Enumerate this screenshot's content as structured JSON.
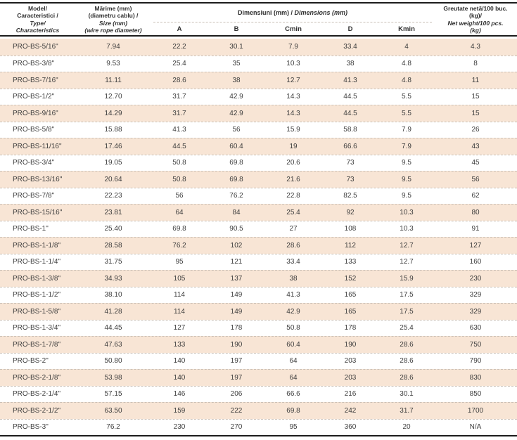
{
  "table": {
    "header": {
      "model": {
        "line1": "Model/",
        "line2": "Caracteristici /",
        "line3": "Type/",
        "line4": "Characteristics"
      },
      "size": {
        "line1": "Mărime (mm)",
        "line2": "(diametru cablu) /",
        "line3": "Size (mm)",
        "line4": "(wire rope diameter)"
      },
      "dimensions_group": {
        "ro": "Dimensiuni (mm)",
        "separator": " / ",
        "en": "Dimensions (mm)"
      },
      "dimension_columns": {
        "a": "A",
        "b": "B",
        "cmin": "Cmin",
        "d": "D",
        "kmin": "Kmin"
      },
      "weight": {
        "line1": "Greutate netă/100 buc.",
        "line2": "(kg)/",
        "line3": "Net weight/100 pcs.",
        "line4": "(kg)"
      }
    },
    "columns_order": [
      "model",
      "size",
      "a",
      "b",
      "cmin",
      "d",
      "kmin",
      "weight"
    ],
    "rows": [
      [
        "PRO-BS-5/16\"",
        "7.94",
        "22.2",
        "30.1",
        "7.9",
        "33.4",
        "4",
        "4.3"
      ],
      [
        "PRO-BS-3/8\"",
        "9.53",
        "25.4",
        "35",
        "10.3",
        "38",
        "4.8",
        "8"
      ],
      [
        "PRO-BS-7/16\"",
        "11.11",
        "28.6",
        "38",
        "12.7",
        "41.3",
        "4.8",
        "11"
      ],
      [
        "PRO-BS-1/2\"",
        "12.70",
        "31.7",
        "42.9",
        "14.3",
        "44.5",
        "5.5",
        "15"
      ],
      [
        "PRO-BS-9/16\"",
        "14.29",
        "31.7",
        "42.9",
        "14.3",
        "44.5",
        "5.5",
        "15"
      ],
      [
        "PRO-BS-5/8\"",
        "15.88",
        "41.3",
        "56",
        "15.9",
        "58.8",
        "7.9",
        "26"
      ],
      [
        "PRO-BS-11/16\"",
        "17.46",
        "44.5",
        "60.4",
        "19",
        "66.6",
        "7.9",
        "43"
      ],
      [
        "PRO-BS-3/4\"",
        "19.05",
        "50.8",
        "69.8",
        "20.6",
        "73",
        "9.5",
        "45"
      ],
      [
        "PRO-BS-13/16\"",
        "20.64",
        "50.8",
        "69.8",
        "21.6",
        "73",
        "9.5",
        "56"
      ],
      [
        "PRO-BS-7/8\"",
        "22.23",
        "56",
        "76.2",
        "22.8",
        "82.5",
        "9.5",
        "62"
      ],
      [
        "PRO-BS-15/16\"",
        "23.81",
        "64",
        "84",
        "25.4",
        "92",
        "10.3",
        "80"
      ],
      [
        "PRO-BS-1\"",
        "25.40",
        "69.8",
        "90.5",
        "27",
        "108",
        "10.3",
        "91"
      ],
      [
        "PRO-BS-1-1/8\"",
        "28.58",
        "76.2",
        "102",
        "28.6",
        "112",
        "12.7",
        "127"
      ],
      [
        "PRO-BS-1-1/4\"",
        "31.75",
        "95",
        "121",
        "33.4",
        "133",
        "12.7",
        "160"
      ],
      [
        "PRO-BS-1-3/8\"",
        "34.93",
        "105",
        "137",
        "38",
        "152",
        "15.9",
        "230"
      ],
      [
        "PRO-BS-1-1/2\"",
        "38.10",
        "114",
        "149",
        "41.3",
        "165",
        "17.5",
        "329"
      ],
      [
        "PRO-BS-1-5/8\"",
        "41.28",
        "114",
        "149",
        "42.9",
        "165",
        "17.5",
        "329"
      ],
      [
        "PRO-BS-1-3/4\"",
        "44.45",
        "127",
        "178",
        "50.8",
        "178",
        "25.4",
        "630"
      ],
      [
        "PRO-BS-1-7/8\"",
        "47.63",
        "133",
        "190",
        "60.4",
        "190",
        "28.6",
        "750"
      ],
      [
        "PRO-BS-2\"",
        "50.80",
        "140",
        "197",
        "64",
        "203",
        "28.6",
        "790"
      ],
      [
        "PRO-BS-2-1/8\"",
        "53.98",
        "140",
        "197",
        "64",
        "203",
        "28.6",
        "830"
      ],
      [
        "PRO-BS-2-1/4\"",
        "57.15",
        "146",
        "206",
        "66.6",
        "216",
        "30.1",
        "850"
      ],
      [
        "PRO-BS-2-1/2\"",
        "63.50",
        "159",
        "222",
        "69.8",
        "242",
        "31.7",
        "1700"
      ],
      [
        "PRO-BS-3\"",
        "76.2",
        "230",
        "270",
        "95",
        "360",
        "20",
        "N/A"
      ]
    ]
  },
  "colors": {
    "stripe": "#f8e5d5",
    "rule": "#1c1c1c",
    "dash": "#c9bfb5",
    "text": "#3d3d3d"
  }
}
